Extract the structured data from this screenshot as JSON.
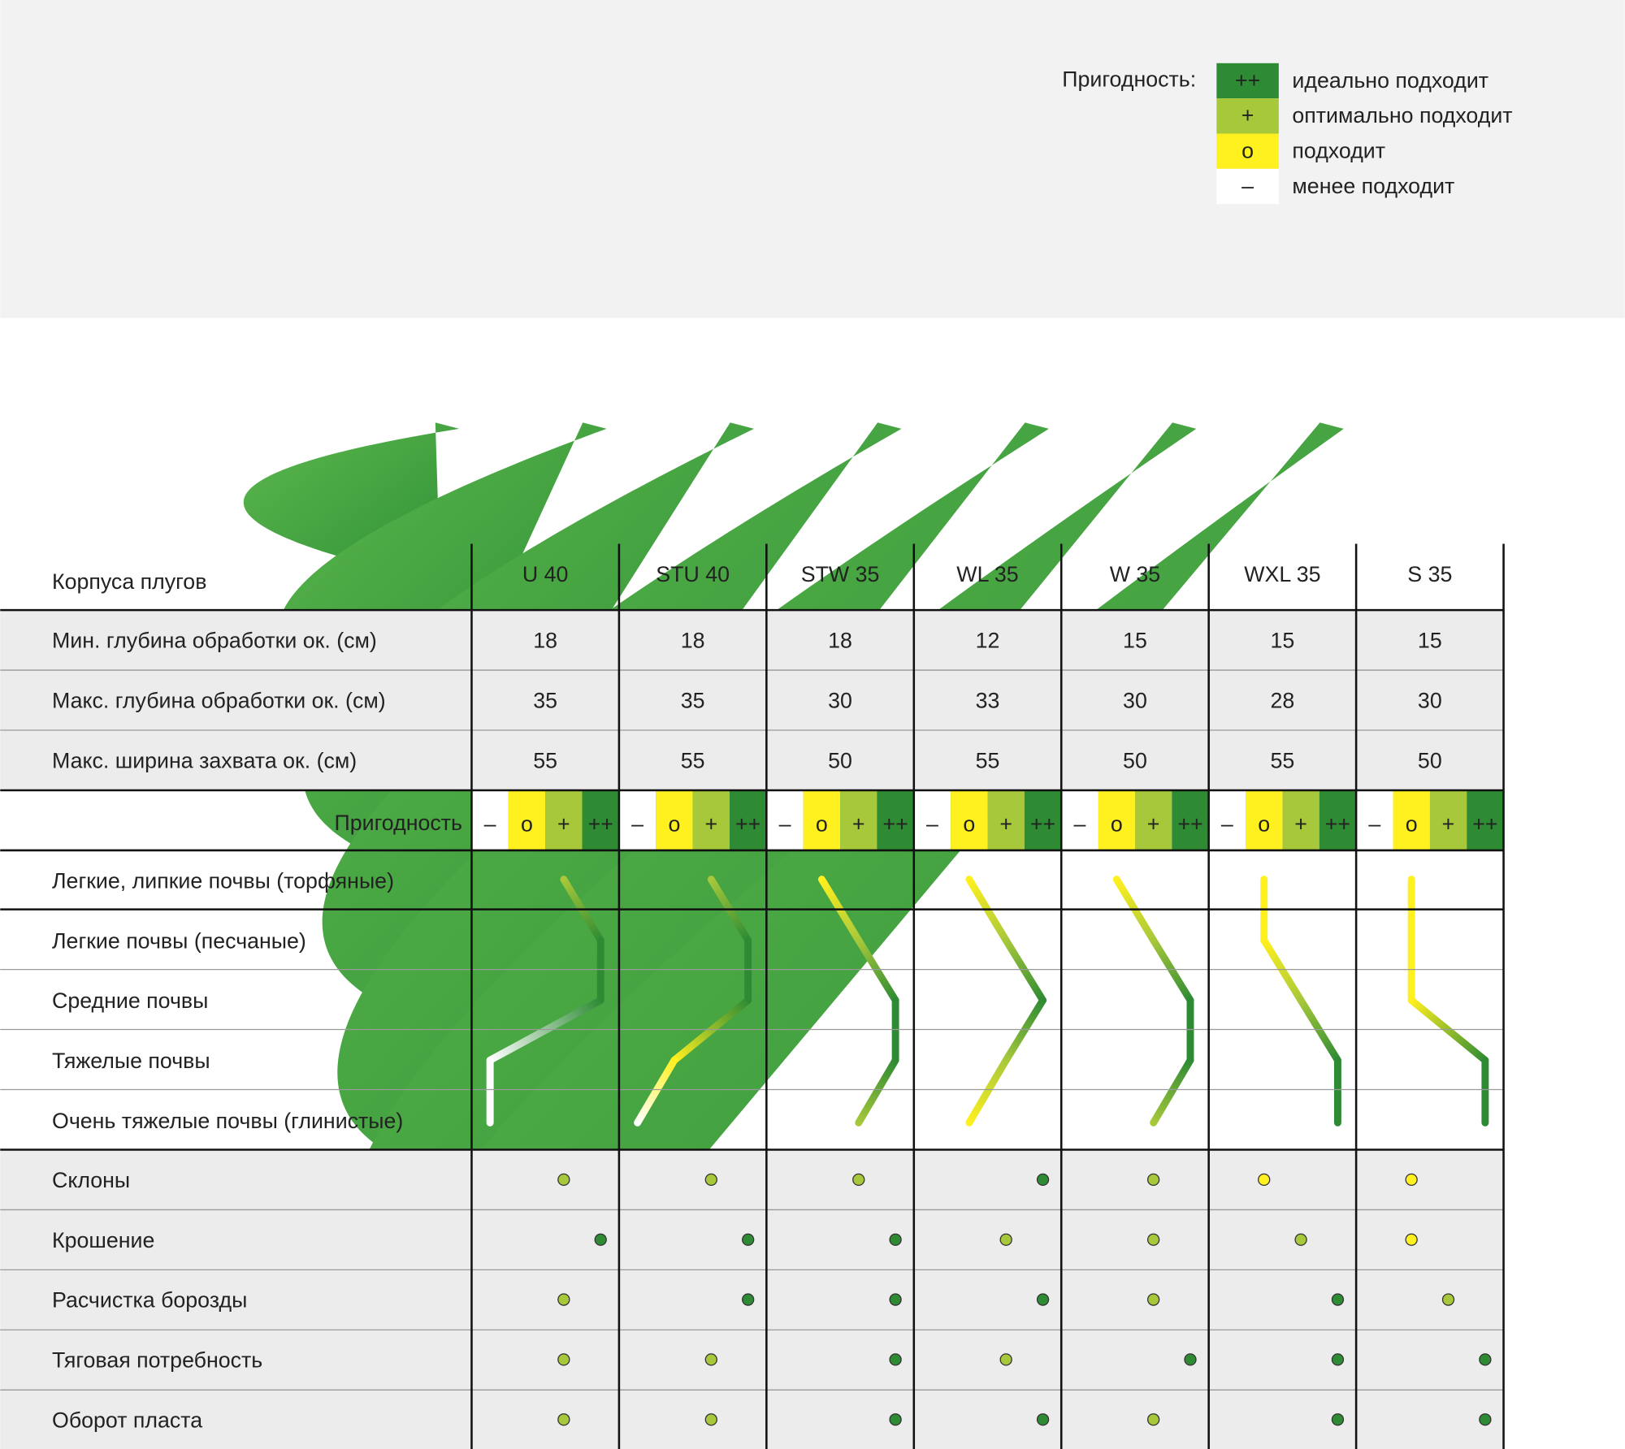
{
  "legend": {
    "title": "Пригодность:",
    "items": [
      {
        "symbol": "++",
        "label": "идеально подходит",
        "color": "#2e8b34"
      },
      {
        "symbol": "+",
        "label": "оптимально подходит",
        "color": "#a7c83a"
      },
      {
        "symbol": "o",
        "label": "подходит",
        "color": "#fff01f"
      },
      {
        "symbol": "–",
        "label": "менее подходит",
        "color": "#ffffff"
      }
    ]
  },
  "table": {
    "header": "Корпуса плугов",
    "columns": [
      "U 40",
      "STU 40",
      "STW 35",
      "WL 35",
      "W 35",
      "WXL 35",
      "S 35"
    ],
    "rows": [
      {
        "label": "Мин. глубина обработки ок. (см)",
        "values": [
          18,
          18,
          18,
          12,
          15,
          15,
          15
        ]
      },
      {
        "label": "Макс. глубина обработки ок. (см)",
        "values": [
          35,
          35,
          30,
          33,
          30,
          28,
          30
        ]
      },
      {
        "label": "Макс. ширина захвата ок. (см)",
        "values": [
          55,
          55,
          50,
          55,
          50,
          55,
          50
        ]
      }
    ],
    "suitability": {
      "label": "Пригодность",
      "symbols": [
        "–",
        "o",
        "+",
        "++"
      ]
    },
    "soils": {
      "labels": [
        "Легкие, липкие почвы (торфяные)",
        "Легкие почвы (песчаные)",
        "Средние почвы",
        "Тяжелые почвы",
        "Очень тяжелые почвы (глинистые)"
      ],
      "columns": [
        [
          "+",
          "++",
          "++",
          "–",
          "–"
        ],
        [
          "+",
          "++",
          "++",
          "o",
          "–"
        ],
        [
          "o",
          "+",
          "++",
          "++",
          "+"
        ],
        [
          "o",
          "+",
          "++",
          "+",
          "o"
        ],
        [
          "o",
          "+",
          "++",
          "++",
          "+"
        ],
        [
          "o",
          "o",
          "+",
          "++",
          "++"
        ],
        [
          "o",
          "o",
          "o",
          "++",
          "++"
        ]
      ]
    },
    "features": [
      {
        "label": "Склоны",
        "values": [
          "+",
          "+",
          "+",
          "++",
          "+",
          "o",
          "o"
        ]
      },
      {
        "label": "Крошение",
        "values": [
          "++",
          "++",
          "++",
          "+",
          "+",
          "+",
          "o"
        ]
      },
      {
        "label": "Расчистка борозды",
        "values": [
          "+",
          "++",
          "++",
          "++",
          "+",
          "++",
          "+"
        ]
      },
      {
        "label": "Тяговая потребность",
        "values": [
          "+",
          "+",
          "++",
          "+",
          "++",
          "++",
          "++"
        ]
      },
      {
        "label": "Оборот пласта",
        "values": [
          "+",
          "+",
          "++",
          "++",
          "+",
          "++",
          "++"
        ]
      }
    ]
  }
}
